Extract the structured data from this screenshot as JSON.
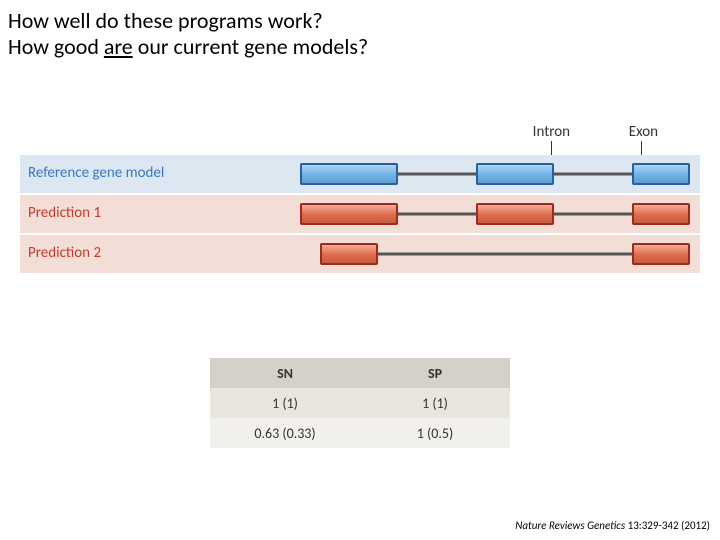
{
  "heading": {
    "line1": "How well do these programs work?",
    "line2_pre": "How good ",
    "line2_under": "are",
    "line2_post": " our current gene models?"
  },
  "legend": {
    "intron": "Intron",
    "exon": "Exon"
  },
  "rows": [
    {
      "label": "Reference gene model",
      "label_color": "#3a78c4",
      "band_bg": "#dde7f2",
      "exon_fill": "#6fb3e8",
      "exon_border": "#2a5f9e",
      "intron_range": [
        0,
        100
      ],
      "exons": [
        {
          "start": 0,
          "end": 25
        },
        {
          "start": 45,
          "end": 65
        },
        {
          "start": 85,
          "end": 100
        }
      ]
    },
    {
      "label": "Prediction 1",
      "label_color": "#c33a2c",
      "band_bg": "#f3ded7",
      "exon_fill": "#e06a4a",
      "exon_border": "#9e2a1e",
      "intron_range": [
        0,
        100
      ],
      "exons": [
        {
          "start": 0,
          "end": 25
        },
        {
          "start": 45,
          "end": 65
        },
        {
          "start": 85,
          "end": 100
        }
      ]
    },
    {
      "label": "Prediction 2",
      "label_color": "#c33a2c",
      "band_bg": "#f3ded7",
      "exon_fill": "#e06a4a",
      "exon_border": "#9e2a1e",
      "intron_range": [
        5,
        100
      ],
      "exons": [
        {
          "start": 5,
          "end": 20
        },
        {
          "start": 85,
          "end": 100
        }
      ]
    }
  ],
  "table": {
    "header_bg": "#d4d1c8",
    "row_odd_bg": "#e8e6df",
    "row_even_bg": "#f2f0ea",
    "headers": [
      "SN",
      "SP"
    ],
    "data": [
      [
        "1 (1)",
        "1 (1)"
      ],
      [
        "0.63 (0.33)",
        "1 (0.5)"
      ]
    ]
  },
  "citation": {
    "journal": "Nature Reviews Genetics",
    "ref": " 13:329-342 (2012)"
  }
}
